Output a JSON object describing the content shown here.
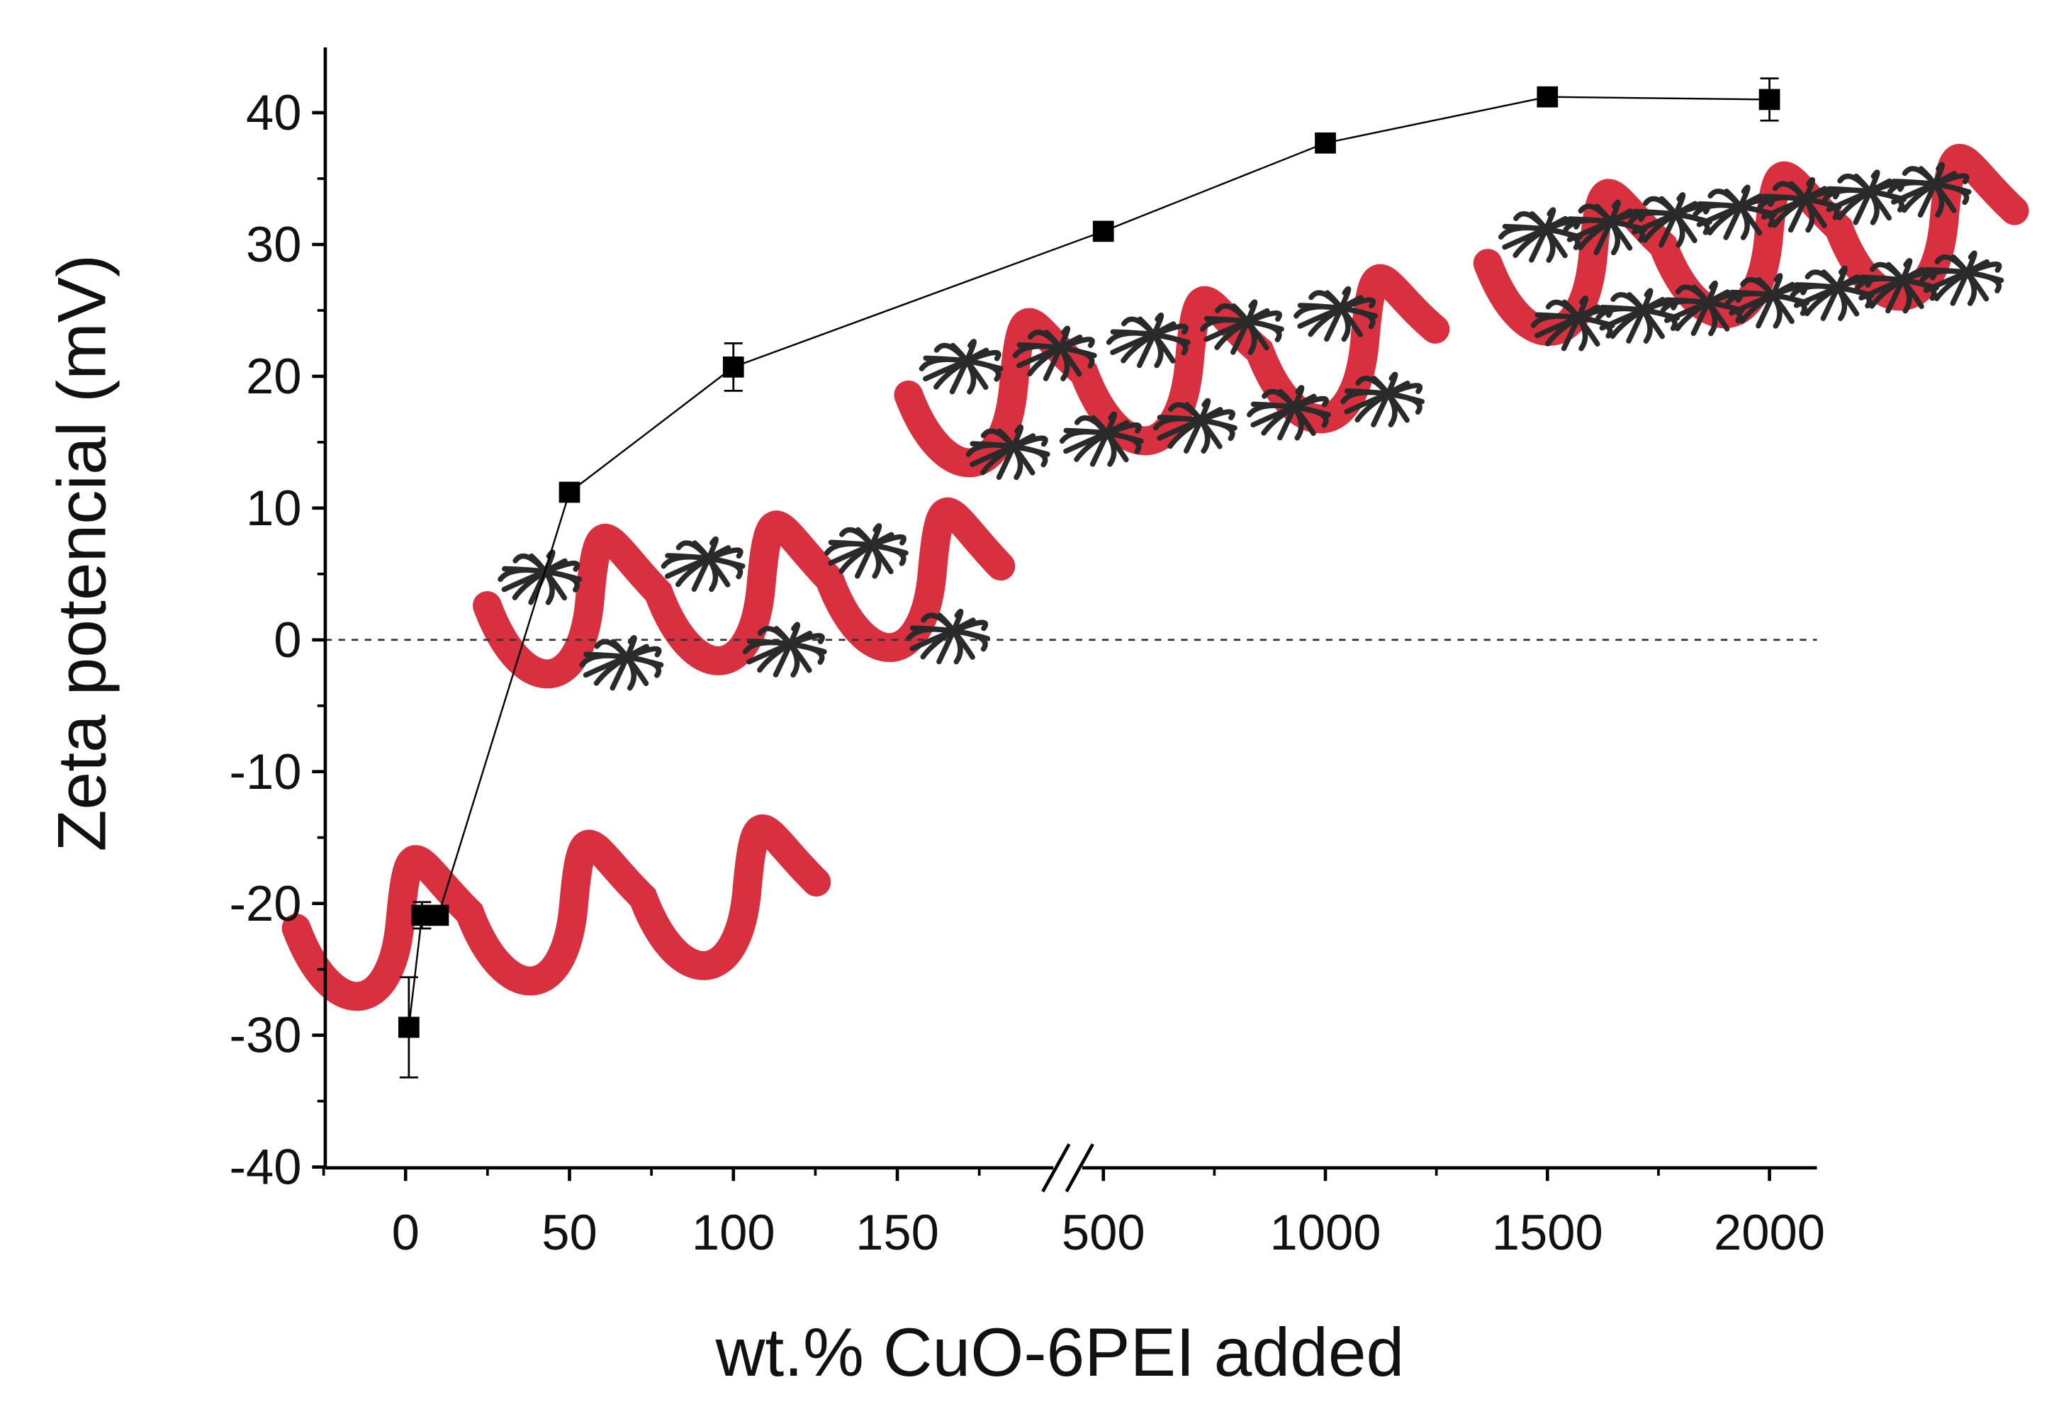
{
  "chart_data": {
    "type": "line",
    "title": "",
    "xlabel": "wt.% CuO-6PEI added",
    "ylabel": "Zeta potencial (mV)",
    "ylim": [
      -40,
      45
    ],
    "x_ticks_left": [
      "0",
      "50",
      "100",
      "150"
    ],
    "x_ticks_right": [
      "500",
      "1000",
      "1500",
      "2000"
    ],
    "x_tick_values_left": [
      0,
      50,
      100,
      150
    ],
    "x_tick_values_right": [
      500,
      1000,
      1500,
      2000
    ],
    "x_break": "between 150 and 500",
    "y_ticks": [
      "40",
      "30",
      "20",
      "10",
      "0",
      "-10",
      "-20",
      "-30",
      "-40"
    ],
    "y_tick_values": [
      40,
      30,
      20,
      10,
      0,
      -10,
      -20,
      -30,
      -40
    ],
    "reference_line": {
      "y": 0,
      "style": "dashed"
    },
    "grid": false,
    "series": [
      {
        "name": "Zeta potential",
        "color": "#000000",
        "marker": "square",
        "x": [
          1,
          5,
          10,
          50,
          100,
          500,
          1000,
          1500,
          2000
        ],
        "y": [
          -29.4,
          -20.9,
          -20.9,
          11.2,
          20.7,
          31.0,
          37.7,
          41.2,
          41.0
        ],
        "error": [
          3.8,
          1.0,
          0.3,
          0.5,
          1.8,
          0.6,
          0.5,
          0.5,
          1.6
        ]
      }
    ],
    "helix_color": "#d8303f",
    "nanoparticle_color": "#2a2a2a"
  }
}
